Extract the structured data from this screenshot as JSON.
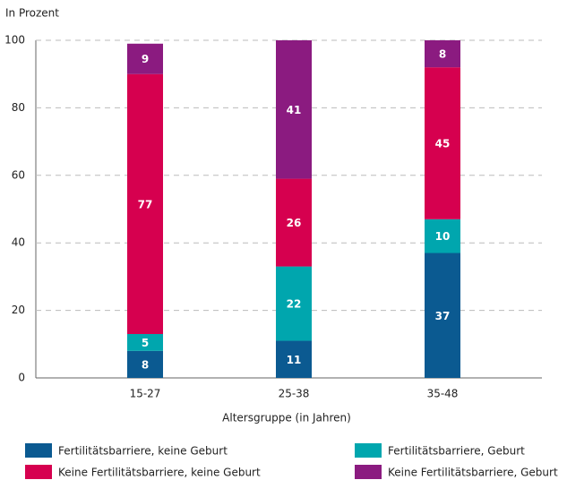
{
  "chart_data": {
    "type": "stacked_bar",
    "y_axis_label": "In Prozent",
    "x_axis_label": "Altersgruppe (in Jahren)",
    "categories": [
      "15-27",
      "25-38",
      "35-48"
    ],
    "series": [
      {
        "name": "Fertilitätsbarriere, keine Geburt",
        "color": "#0b5a91",
        "values": [
          8,
          11,
          37
        ]
      },
      {
        "name": "Fertilitätsbarriere, Geburt",
        "color": "#00a6ae",
        "values": [
          5,
          22,
          10
        ]
      },
      {
        "name": "Keine Fertilitätsbarriere, keine Geburt",
        "color": "#d6004f",
        "values": [
          77,
          26,
          45
        ]
      },
      {
        "name": "Keine Fertilitätsbarriere, Geburt",
        "color": "#8b1b80",
        "values": [
          9,
          41,
          8
        ]
      }
    ],
    "ylim": [
      0,
      100
    ],
    "yticks": [
      0,
      20,
      40,
      60,
      80,
      100
    ],
    "grid": true
  }
}
